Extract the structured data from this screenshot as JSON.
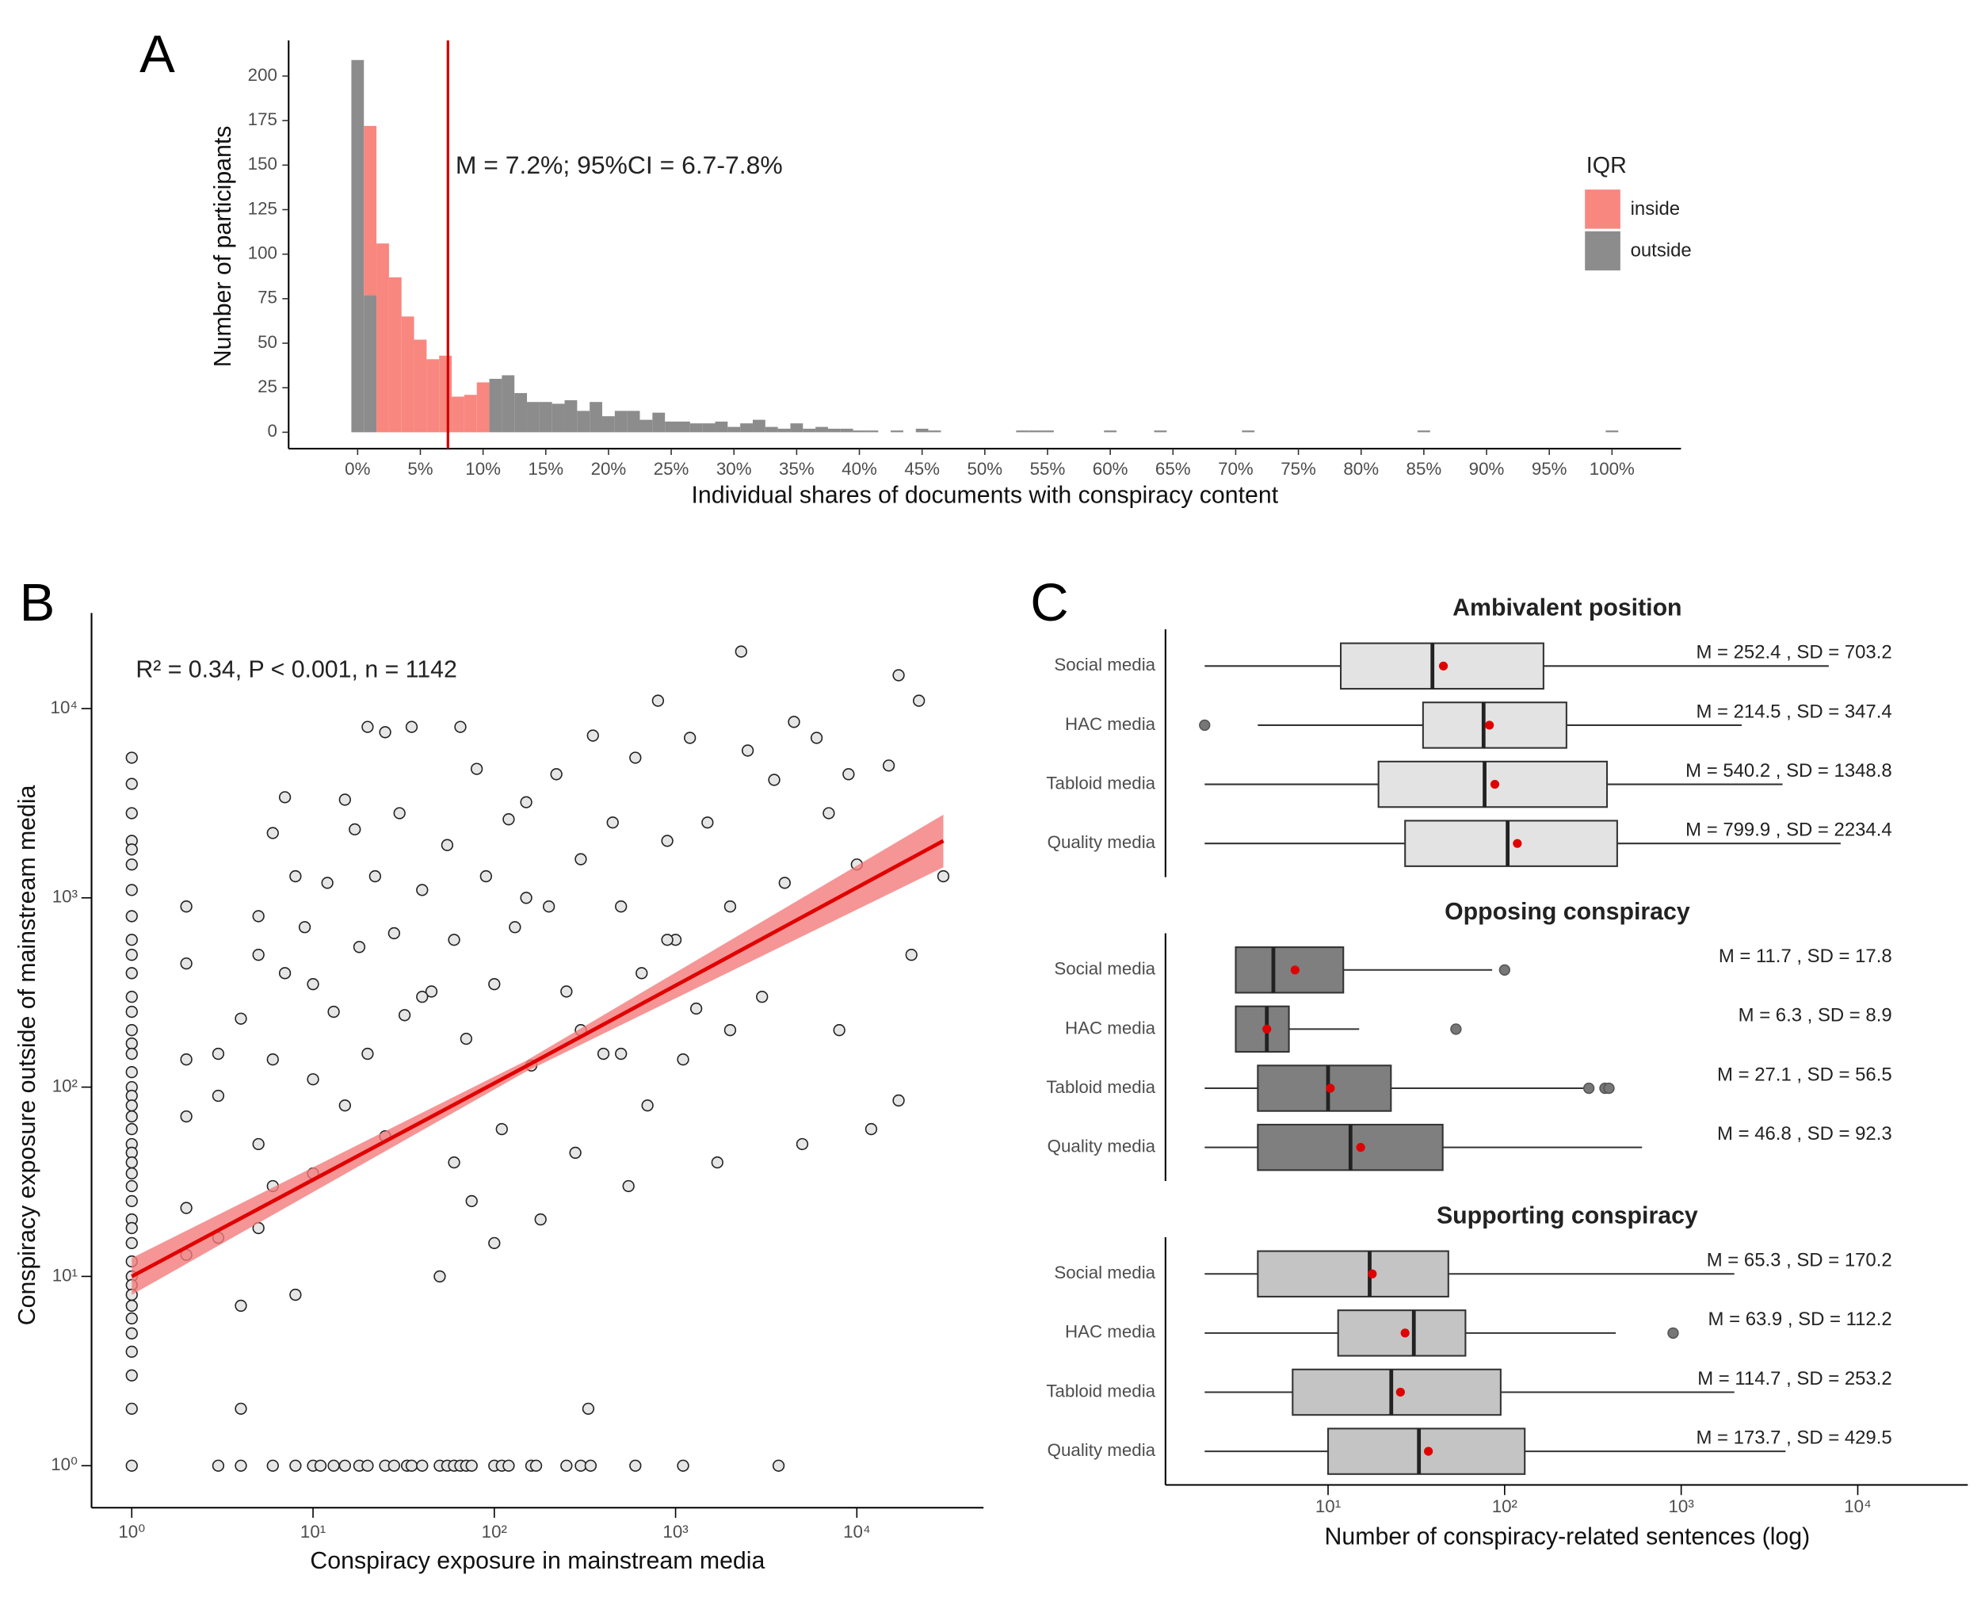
{
  "chart_data": [
    {
      "type": "histogram",
      "panel": "A",
      "xlabel": "Individual shares of documents with conspiracy content",
      "ylabel": "Number of participants",
      "annotation": "M = 7.2%; 95%CI = 6.7-7.8%",
      "mean_line": 7.2,
      "mean_line_color": "#d40000",
      "legend_title": "IQR",
      "bins": [
        -0.5,
        0.5,
        1.5,
        2.5,
        3.5,
        4.5,
        5.5,
        6.5,
        7.5,
        8.5,
        9.5,
        10.5,
        11.5,
        12.5,
        13.5,
        14.5,
        15.5,
        16.5,
        17.5,
        18.5,
        19.5,
        20.5,
        21.5,
        22.5,
        23.5,
        24.5,
        25.5,
        26.5,
        27.5,
        28.5,
        29.5,
        30.5,
        31.5,
        32.5,
        33.5,
        34.5,
        35.5,
        36.5,
        37.5,
        38.5,
        39.5,
        40.5,
        41.5,
        42.5,
        43.5,
        44.5,
        45.5,
        46.5,
        47.5,
        48.5,
        49.5,
        50.5,
        51.5,
        52.5,
        53.5,
        54.5,
        55.5,
        56.5,
        57.5,
        58.5,
        59.5,
        60.5,
        61.5,
        62.5,
        63.5,
        64.5,
        65.5,
        66.5,
        67.5,
        68.5,
        69.5,
        70.5,
        71.5,
        72.5,
        73.5,
        74.5,
        75.5,
        76.5,
        77.5,
        78.5,
        79.5,
        80.5,
        81.5,
        82.5,
        83.5,
        84.5,
        85.5,
        86.5,
        87.5,
        88.5,
        89.5,
        90.5,
        91.5,
        92.5,
        93.5,
        94.5,
        95.5,
        96.5,
        97.5,
        98.5,
        99.5,
        100.5
      ],
      "series": [
        {
          "name": "inside",
          "color": "#f8877f",
          "values": [
            0,
            95,
            106,
            87,
            65,
            52,
            41,
            43,
            20,
            21,
            28,
            0,
            0,
            0,
            0,
            0,
            0,
            0,
            0,
            0,
            0,
            0,
            0,
            0,
            0,
            0,
            0,
            0,
            0,
            0,
            0,
            0,
            0,
            0,
            0,
            0,
            0,
            0,
            0,
            0,
            0,
            0,
            0,
            0,
            0,
            0,
            0,
            0,
            0,
            0,
            0,
            0,
            0,
            0,
            0,
            0,
            0,
            0,
            0,
            0,
            0,
            0,
            0,
            0,
            0,
            0,
            0,
            0,
            0,
            0,
            0,
            0,
            0,
            0,
            0,
            0,
            0,
            0,
            0,
            0,
            0,
            0,
            0,
            0,
            0,
            0,
            0,
            0,
            0,
            0,
            0,
            0,
            0,
            0,
            0,
            0,
            0,
            0,
            0,
            0,
            0
          ]
        },
        {
          "name": "outside",
          "color": "#8c8c8c",
          "values": [
            209,
            77,
            0,
            0,
            0,
            0,
            0,
            0,
            0,
            0,
            0,
            30,
            32,
            22,
            17,
            17,
            16,
            18,
            12,
            17,
            9,
            12,
            12,
            7,
            11,
            6,
            6,
            5,
            5,
            6,
            3,
            5,
            7,
            3,
            2,
            5,
            2,
            3,
            2,
            2,
            1,
            1,
            0,
            1,
            0,
            2,
            1,
            0,
            0,
            0,
            0,
            0,
            0,
            1,
            1,
            1,
            0,
            0,
            0,
            0,
            1,
            0,
            0,
            0,
            1,
            0,
            0,
            0,
            0,
            0,
            0,
            1,
            0,
            0,
            0,
            0,
            0,
            0,
            0,
            0,
            0,
            0,
            0,
            0,
            0,
            1,
            0,
            0,
            0,
            0,
            0,
            0,
            0,
            0,
            0,
            0,
            0,
            0,
            0,
            0,
            1
          ]
        }
      ],
      "xlim": [
        -5.5,
        105.5
      ],
      "xticks": [
        {
          "value": 0,
          "label": "0%"
        },
        {
          "value": 5,
          "label": "5%"
        },
        {
          "value": 10,
          "label": "10%"
        },
        {
          "value": 15,
          "label": "15%"
        },
        {
          "value": 20,
          "label": "20%"
        },
        {
          "value": 25,
          "label": "25%"
        },
        {
          "value": 30,
          "label": "30%"
        },
        {
          "value": 35,
          "label": "35%"
        },
        {
          "value": 40,
          "label": "40%"
        },
        {
          "value": 45,
          "label": "45%"
        },
        {
          "value": 50,
          "label": "50%"
        },
        {
          "value": 55,
          "label": "55%"
        },
        {
          "value": 60,
          "label": "60%"
        },
        {
          "value": 65,
          "label": "65%"
        },
        {
          "value": 70,
          "label": "70%"
        },
        {
          "value": 75,
          "label": "75%"
        },
        {
          "value": 80,
          "label": "80%"
        },
        {
          "value": 85,
          "label": "85%"
        },
        {
          "value": 90,
          "label": "90%"
        },
        {
          "value": 95,
          "label": "95%"
        },
        {
          "value": 100,
          "label": "100%"
        }
      ],
      "ylim": [
        -9.2,
        220
      ],
      "yticks": [
        0,
        25,
        50,
        75,
        100,
        125,
        150,
        175,
        200
      ]
    },
    {
      "type": "scatter",
      "panel": "B",
      "xlabel": "Conspiracy exposure in mainstream media",
      "ylabel": "Conspiracy exposure outside of mainstream media",
      "annotation": "R² = 0.34, P < 0.001, n = 1142",
      "log_x": true,
      "log_y": true,
      "xlim": [
        0.6,
        50000
      ],
      "ylim": [
        0.6,
        32000
      ],
      "xticks": [
        {
          "value": 1,
          "label": "10⁰"
        },
        {
          "value": 10,
          "label": "10¹"
        },
        {
          "value": 100,
          "label": "10²"
        },
        {
          "value": 1000,
          "label": "10³"
        },
        {
          "value": 10000,
          "label": "10⁴"
        }
      ],
      "yticks": [
        {
          "value": 1,
          "label": "10⁰"
        },
        {
          "value": 10,
          "label": "10¹"
        },
        {
          "value": 100,
          "label": "10²"
        },
        {
          "value": 1000,
          "label": "10³"
        },
        {
          "value": 10000,
          "label": "10⁴"
        }
      ],
      "point_color": "#e6e6e6",
      "x": [
        1,
        1,
        1,
        1,
        1,
        1,
        1,
        1,
        1,
        1,
        1,
        1,
        1,
        1,
        1,
        1,
        1,
        1,
        1,
        1,
        1,
        1,
        1,
        1,
        1,
        1,
        1,
        1,
        1,
        1,
        1,
        1,
        1,
        1,
        1,
        1,
        1,
        1,
        1,
        1,
        1,
        1,
        3,
        4,
        6,
        8,
        10,
        11,
        13,
        15,
        18,
        20,
        25,
        28,
        33,
        35,
        40,
        50,
        55,
        60,
        65,
        70,
        75,
        100,
        110,
        120,
        160,
        170,
        250,
        300,
        340,
        600,
        1100,
        3700,
        2,
        2,
        2,
        2,
        2,
        2,
        3,
        3,
        3,
        4,
        4,
        4,
        5,
        5,
        5,
        5,
        6,
        6,
        6,
        7,
        7,
        8,
        8,
        9,
        10,
        10,
        10,
        12,
        13,
        15,
        15,
        17,
        18,
        20,
        20,
        22,
        25,
        25,
        28,
        30,
        32,
        35,
        40,
        45,
        50,
        55,
        60,
        65,
        70,
        75,
        80,
        90,
        100,
        110,
        120,
        130,
        150,
        160,
        180,
        200,
        220,
        250,
        280,
        300,
        330,
        350,
        400,
        450,
        500,
        550,
        600,
        650,
        700,
        800,
        900,
        1000,
        1100,
        1200,
        1300,
        1500,
        1700,
        2000,
        2300,
        2500,
        3000,
        3500,
        4000,
        4500,
        5000,
        6000,
        7000,
        8000,
        9000,
        10000,
        12000,
        15000,
        17000,
        20000,
        22000,
        30000,
        17000,
        900,
        300,
        60,
        100,
        40,
        150,
        500,
        2000
      ],
      "y": [
        5500,
        4000,
        2800,
        2000,
        1800,
        1500,
        1100,
        800,
        600,
        500,
        400,
        300,
        250,
        200,
        170,
        150,
        120,
        100,
        90,
        80,
        70,
        60,
        50,
        45,
        40,
        35,
        30,
        25,
        20,
        18,
        15,
        12,
        10,
        9,
        8,
        7,
        6,
        5,
        4,
        3,
        2,
        1,
        1,
        1,
        1,
        1,
        1,
        1,
        1,
        1,
        1,
        1,
        1,
        1,
        1,
        1,
        1,
        1,
        1,
        1,
        1,
        1,
        1,
        1,
        1,
        1,
        1,
        1,
        1,
        1,
        1,
        1,
        1,
        1,
        900,
        450,
        140,
        70,
        23,
        13,
        150,
        90,
        16,
        230,
        7,
        2,
        800,
        500,
        50,
        18,
        2200,
        140,
        30,
        3400,
        400,
        1300,
        8,
        700,
        350,
        110,
        35,
        1200,
        250,
        3300,
        80,
        2300,
        550,
        8000,
        150,
        1300,
        7500,
        55,
        650,
        2800,
        240,
        8000,
        1100,
        320,
        10,
        1900,
        600,
        8000,
        180,
        25,
        4800,
        1300,
        350,
        60,
        2600,
        700,
        3200,
        130,
        20,
        900,
        4500,
        320,
        45,
        1600,
        2,
        7200,
        150,
        2500,
        900,
        30,
        5500,
        400,
        80,
        11000,
        2000,
        600,
        140,
        7000,
        260,
        2500,
        40,
        900,
        20000,
        6000,
        300,
        4200,
        1200,
        8500,
        50,
        7000,
        2800,
        200,
        4500,
        1500,
        60,
        5000,
        15000,
        500,
        11000,
        1300,
        85,
        600,
        200,
        40,
        15,
        300,
        1000,
        150,
        200
      ],
      "fit": {
        "color": "#e00000",
        "band_color": "#f47a7a",
        "x": [
          1,
          150,
          30000
        ],
        "y": [
          10,
          129,
          2000
        ],
        "lower": [
          8,
          121,
          1450
        ],
        "upper": [
          12.5,
          138,
          2750
        ]
      }
    },
    {
      "type": "box",
      "panel": "C",
      "xlabel": "Number of conspiracy-related sentences (log)",
      "log_x": true,
      "xlim": [
        1.2,
        42000
      ],
      "xticks": [
        {
          "value": 10,
          "label": "10¹"
        },
        {
          "value": 100,
          "label": "10²"
        },
        {
          "value": 1000,
          "label": "10³"
        },
        {
          "value": 10000,
          "label": "10⁴"
        }
      ],
      "mean_color": "#e00000",
      "facets": [
        {
          "title": "Ambivalent position",
          "color": "#e3e3e3",
          "categories": [
            "Social media",
            "HAC media",
            "Tabloid media",
            "Quality media"
          ],
          "boxes": [
            {
              "low": 2,
              "q1": 11.8,
              "median": 39,
              "q3": 166,
              "high": 6850,
              "mean": 45,
              "outliers": []
            },
            {
              "low": 4,
              "q1": 34.5,
              "median": 76,
              "q3": 224,
              "high": 2200,
              "mean": 82,
              "outliers": [
                2
              ]
            },
            {
              "low": 2,
              "q1": 19.3,
              "median": 77,
              "q3": 380,
              "high": 3750,
              "mean": 88,
              "outliers": []
            },
            {
              "low": 2,
              "q1": 27.3,
              "median": 104,
              "q3": 434,
              "high": 8000,
              "mean": 118,
              "outliers": []
            }
          ],
          "labels": [
            "M = 252.4 , SD = 703.2",
            "M = 214.5 , SD = 347.4",
            "M = 540.2 , SD = 1348.8",
            "M = 799.9 , SD = 2234.4"
          ]
        },
        {
          "title": "Opposing conspiracy",
          "color": "#7f7f7f",
          "categories": [
            "Social media",
            "HAC media",
            "Tabloid media",
            "Quality media"
          ],
          "boxes": [
            {
              "low": 3,
              "q1": 3,
              "median": 4.9,
              "q3": 12.2,
              "high": 85,
              "mean": 6.5,
              "outliers": [
                100
              ]
            },
            {
              "low": 3,
              "q1": 3,
              "median": 4.5,
              "q3": 6,
              "high": 15,
              "mean": 4.5,
              "outliers": [
                53
              ]
            },
            {
              "low": 2,
              "q1": 4,
              "median": 10,
              "q3": 22.7,
              "high": 300,
              "mean": 10.3,
              "outliers": [
                300,
                370,
                390
              ]
            },
            {
              "low": 2,
              "q1": 4,
              "median": 13.4,
              "q3": 44.6,
              "high": 600,
              "mean": 15.3,
              "outliers": []
            }
          ],
          "labels": [
            "M = 11.7 , SD = 17.8",
            "M = 6.3 , SD = 8.9",
            "M = 27.1 , SD = 56.5",
            "M = 46.8 , SD = 92.3"
          ]
        },
        {
          "title": "Supporting conspiracy",
          "color": "#c4c4c4",
          "categories": [
            "Social media",
            "HAC media",
            "Tabloid media",
            "Quality media"
          ],
          "boxes": [
            {
              "low": 2,
              "q1": 4,
              "median": 17.2,
              "q3": 48,
              "high": 2000,
              "mean": 17.8,
              "outliers": []
            },
            {
              "low": 2,
              "q1": 11.4,
              "median": 30.6,
              "q3": 60,
              "high": 426,
              "mean": 27.3,
              "outliers": [
                900
              ]
            },
            {
              "low": 2,
              "q1": 6.3,
              "median": 22.8,
              "q3": 95,
              "high": 2000,
              "mean": 25.7,
              "outliers": []
            },
            {
              "low": 2,
              "q1": 10,
              "median": 32.7,
              "q3": 130,
              "high": 3900,
              "mean": 37,
              "outliers": []
            }
          ],
          "labels": [
            "M = 65.3 , SD = 170.2",
            "M = 63.9 , SD = 112.2",
            "M = 114.7 , SD = 253.2",
            "M = 173.7 , SD = 429.5"
          ]
        }
      ]
    }
  ]
}
